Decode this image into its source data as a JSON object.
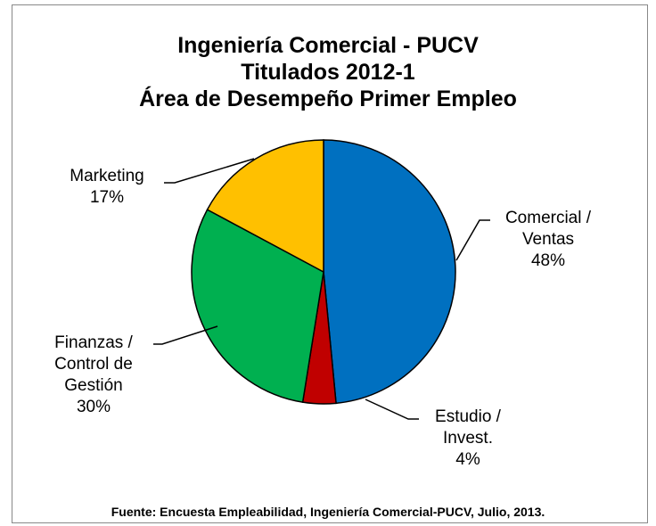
{
  "chart_data": {
    "type": "pie",
    "title": [
      "Ingeniería Comercial - PUCV",
      "Titulados 2012-1",
      "Área de Desempeño Primer Empleo"
    ],
    "categories": [
      "Comercial / Ventas",
      "Estudio / Invest.",
      "Finanzas / Control de Gestión",
      "Marketing"
    ],
    "values": [
      48,
      4,
      30,
      17
    ],
    "value_labels": [
      "48%",
      "4%",
      "30%",
      "17%"
    ],
    "colors": [
      "#0070c0",
      "#c00000",
      "#00b050",
      "#ffc000"
    ],
    "source": "Fuente: Encuesta Empleabilidad, Ingeniería Comercial-PUCV, Julio, 2013."
  }
}
